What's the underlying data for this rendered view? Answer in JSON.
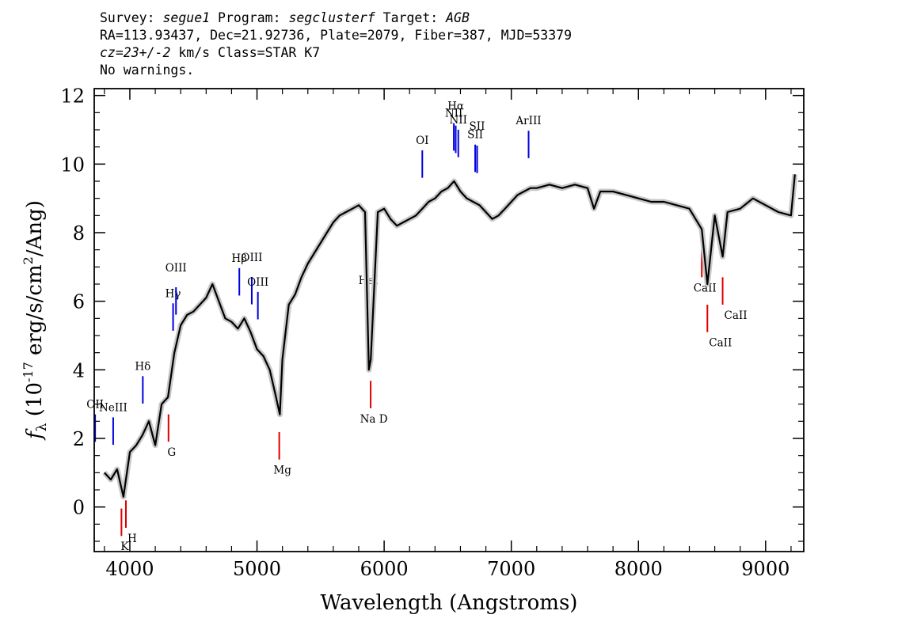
{
  "header": {
    "survey_label": "Survey: ",
    "survey": "segue1",
    "program_label": " Program: ",
    "program": "segclusterf",
    "target_label": " Target: ",
    "target": "AGB",
    "line2": "RA=113.93437, Dec=21.92736, Plate=2079, Fiber=387, MJD=53379",
    "cz": "cz=23+/-2",
    "line3_rest": " km/s Class=STAR K7",
    "line4": "No warnings."
  },
  "chart_data": {
    "type": "line",
    "xlabel": "Wavelength (Angstroms)",
    "ylabel_main": "f",
    "ylabel_sub": "λ",
    "ylabel_unit_pre": " (10",
    "ylabel_exp1": "-17",
    "ylabel_unit_mid": " erg/s/cm",
    "ylabel_exp2": "2",
    "ylabel_unit_post": "/Ang)",
    "xlim": [
      3720,
      9300
    ],
    "ylim": [
      -1.3,
      12.2
    ],
    "xticks": [
      4000,
      5000,
      6000,
      7000,
      8000,
      9000
    ],
    "yticks": [
      0,
      2,
      4,
      6,
      8,
      10,
      12
    ],
    "series": [
      {
        "color": "#000000",
        "x": [
          3800,
          3850,
          3900,
          3950,
          4000,
          4050,
          4100,
          4150,
          4200,
          4250,
          4300,
          4350,
          4400,
          4450,
          4500,
          4550,
          4600,
          4650,
          4700,
          4750,
          4800,
          4850,
          4900,
          4950,
          5000,
          5050,
          5100,
          5150,
          5180,
          5200,
          5250,
          5300,
          5350,
          5400,
          5450,
          5500,
          5550,
          5600,
          5650,
          5700,
          5750,
          5800,
          5850,
          5880,
          5895,
          5950,
          6000,
          6050,
          6100,
          6150,
          6200,
          6250,
          6300,
          6350,
          6400,
          6450,
          6500,
          6550,
          6600,
          6650,
          6700,
          6750,
          6800,
          6850,
          6900,
          6950,
          7000,
          7050,
          7100,
          7150,
          7200,
          7300,
          7400,
          7500,
          7600,
          7650,
          7700,
          7800,
          7900,
          8000,
          8100,
          8200,
          8300,
          8400,
          8498,
          8542,
          8600,
          8662,
          8700,
          8800,
          8900,
          9000,
          9100,
          9200,
          9230
        ],
        "y": [
          1.0,
          0.8,
          1.1,
          0.3,
          1.6,
          1.8,
          2.1,
          2.5,
          1.8,
          3.0,
          3.2,
          4.5,
          5.3,
          5.6,
          5.7,
          5.9,
          6.1,
          6.5,
          6.0,
          5.5,
          5.4,
          5.2,
          5.5,
          5.1,
          4.6,
          4.4,
          4.0,
          3.2,
          2.7,
          4.3,
          5.9,
          6.2,
          6.7,
          7.1,
          7.4,
          7.7,
          8.0,
          8.3,
          8.5,
          8.6,
          8.7,
          8.8,
          8.6,
          4.0,
          4.3,
          8.6,
          8.7,
          8.4,
          8.2,
          8.3,
          8.4,
          8.5,
          8.7,
          8.9,
          9.0,
          9.2,
          9.3,
          9.5,
          9.2,
          9.0,
          8.9,
          8.8,
          8.6,
          8.4,
          8.5,
          8.7,
          8.9,
          9.1,
          9.2,
          9.3,
          9.3,
          9.4,
          9.3,
          9.4,
          9.3,
          8.7,
          9.2,
          9.2,
          9.1,
          9.0,
          8.9,
          8.9,
          8.8,
          8.7,
          8.1,
          6.5,
          8.5,
          7.3,
          8.6,
          8.7,
          9.0,
          8.8,
          8.6,
          8.5,
          9.7
        ]
      }
    ],
    "emission_lines": [
      {
        "label": "OII",
        "x": 3727
      },
      {
        "label": "NeIII",
        "x": 3869
      },
      {
        "label": "Hδ",
        "x": 4102
      },
      {
        "label": "Hγ",
        "x": 4340
      },
      {
        "label": "OIII",
        "x": 4363
      },
      {
        "label": "Hβ",
        "x": 4861
      },
      {
        "label": "OIII",
        "x": 4959
      },
      {
        "label": "OIII",
        "x": 5007
      },
      {
        "label": "HeI",
        "x": 5876
      },
      {
        "label": "OI",
        "x": 6300
      },
      {
        "label": "NII",
        "x": 6548
      },
      {
        "label": "Hα",
        "x": 6563
      },
      {
        "label": "NII",
        "x": 6583
      },
      {
        "label": "SII",
        "x": 6716
      },
      {
        "label": "SII",
        "x": 6731
      },
      {
        "label": "ArIII",
        "x": 7136
      }
    ],
    "absorption_lines": [
      {
        "label": "K",
        "x": 3934
      },
      {
        "label": "H",
        "x": 3969
      },
      {
        "label": "G",
        "x": 4304
      },
      {
        "label": "Mg",
        "x": 5175
      },
      {
        "label": "Na D",
        "x": 5894
      },
      {
        "label": "CaII",
        "x": 8498
      },
      {
        "label": "CaII",
        "x": 8542
      },
      {
        "label": "CaII",
        "x": 8662
      }
    ]
  }
}
